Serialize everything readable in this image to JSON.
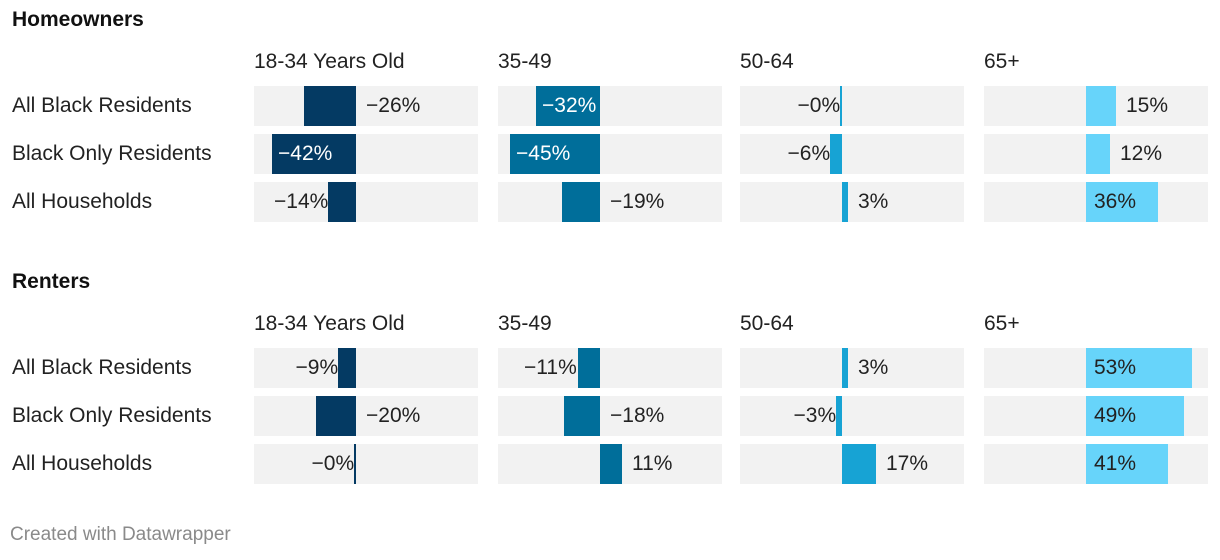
{
  "footer": "Created with Datawrapper",
  "colors": {
    "cell_bg": "#f2f2f2",
    "18-34 Years Old": "#043a63",
    "35-49": "#006e9a",
    "50-64": "#17a3d4",
    "65+": "#67d4fa"
  },
  "chart_data": {
    "type": "bar",
    "columns": [
      "18-34 Years Old",
      "35-49",
      "50-64",
      "65+"
    ],
    "rows": [
      "All Black Residents",
      "Black Only Residents",
      "All Households"
    ],
    "panels": [
      {
        "title": "Homeowners",
        "values": [
          [
            -26,
            -32,
            -0.3,
            15
          ],
          [
            -42,
            -45,
            -6,
            12
          ],
          [
            -14,
            -19,
            3,
            36
          ]
        ],
        "labels": [
          [
            "−26%",
            "−32%",
            "−0%",
            "15%"
          ],
          [
            "−42%",
            "−45%",
            "−6%",
            "12%"
          ],
          [
            "−14%",
            "−19%",
            "3%",
            "36%"
          ]
        ]
      },
      {
        "title": "Renters",
        "values": [
          [
            -9,
            -11,
            3,
            53
          ],
          [
            -20,
            -18,
            -3,
            49
          ],
          [
            -0.3,
            11,
            17,
            41
          ]
        ],
        "labels": [
          [
            "−9%",
            "−11%",
            "3%",
            "53%"
          ],
          [
            "−20%",
            "−18%",
            "−3%",
            "49%"
          ],
          [
            "−0%",
            "11%",
            "17%",
            "41%"
          ]
        ]
      }
    ]
  }
}
